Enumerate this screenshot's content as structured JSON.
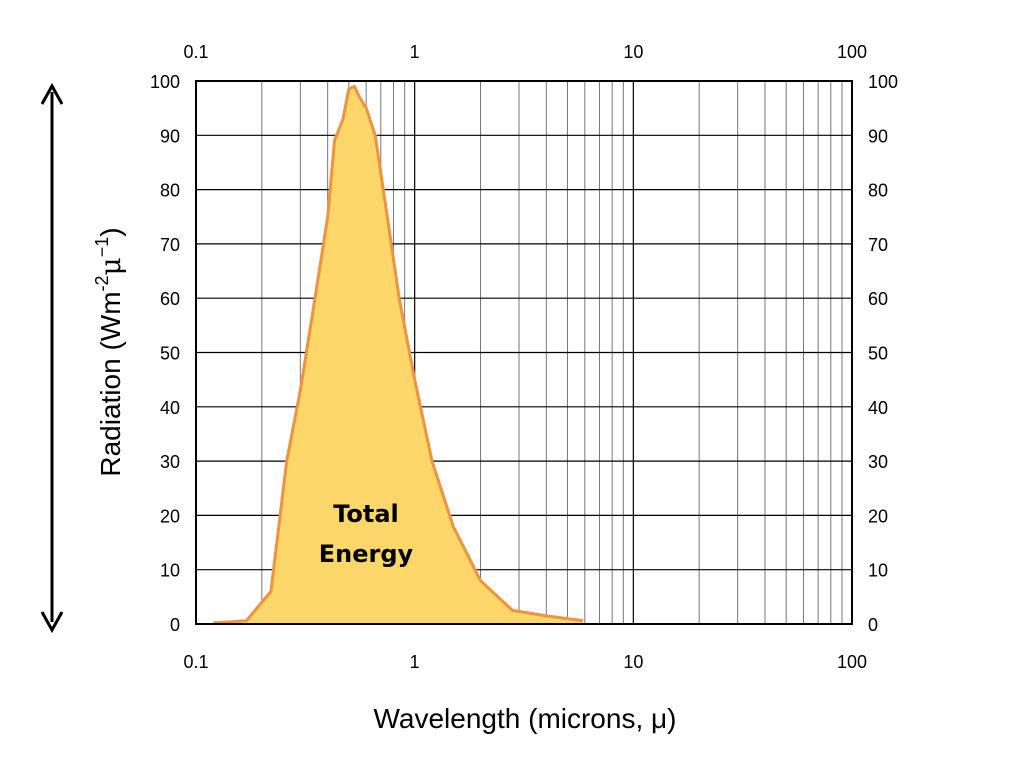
{
  "chart_data": {
    "type": "area",
    "title": "",
    "xlabel": "Wavelength (microns, μ)",
    "ylabel_text": "Radiation (Wm",
    "ylabel_sup1": "-2",
    "ylabel_mu": "μ",
    "ylabel_sup2": "−1",
    "ylabel_close": ")",
    "x_scale": "log",
    "xlim": [
      0.1,
      100
    ],
    "ylim": [
      0,
      100
    ],
    "x_ticks": [
      0.1,
      1,
      10,
      100
    ],
    "x_tick_labels": [
      "0.1",
      "1",
      "10",
      "100"
    ],
    "y_ticks": [
      0,
      10,
      20,
      30,
      40,
      50,
      60,
      70,
      80,
      90,
      100
    ],
    "y_tick_labels": [
      "0",
      "10",
      "20",
      "30",
      "40",
      "50",
      "60",
      "70",
      "80",
      "90",
      "100"
    ],
    "grid": true,
    "annotation_line1": "Total",
    "annotation_line2": "Energy",
    "colors": {
      "fill": "#FCD668",
      "line": "#EE9340",
      "arrow": "#000000"
    },
    "series": [
      {
        "x": [
          0.12,
          0.17,
          0.22,
          0.26,
          0.3,
          0.35,
          0.4,
          0.43,
          0.47,
          0.5,
          0.53,
          0.56,
          0.6,
          0.66,
          0.75,
          0.85,
          1.0,
          1.2,
          1.5,
          2.0,
          2.8,
          4.0,
          5.9
        ],
        "y": [
          0.2,
          0.6,
          6,
          30,
          43,
          60,
          75,
          89,
          93,
          98.5,
          99,
          97,
          95,
          90,
          75,
          60,
          45,
          30,
          18,
          8,
          2.5,
          1.5,
          0.6
        ]
      }
    ]
  }
}
